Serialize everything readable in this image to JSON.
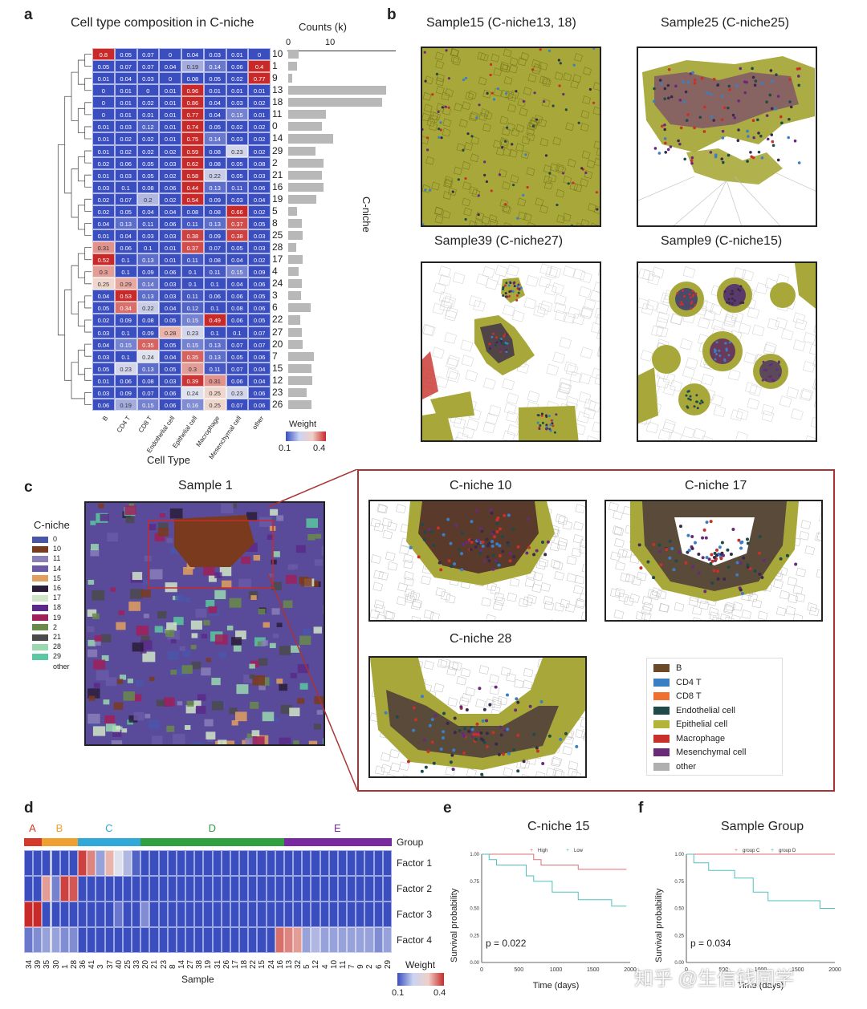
{
  "panels": {
    "a": "a",
    "b": "b",
    "c": "c",
    "d": "d",
    "e": "e",
    "f": "f"
  },
  "a": {
    "title": "Cell type composition in C-niche",
    "counts_title": "Counts (k)",
    "counts_ticks": [
      "0",
      "10"
    ],
    "xlabel": "Cell Type",
    "ylabel_right": "C-niche",
    "columns": [
      "B",
      "CD4 T",
      "CD8 T",
      "Endothelial cell",
      "Epithelial cell",
      "Macrophage",
      "Mesenchymal cell",
      "other"
    ],
    "weight_label": "Weight",
    "weight_ticks": [
      "0.1",
      "0.4"
    ],
    "rows": [
      {
        "niche": "10",
        "vals": [
          "0.8",
          "0.05",
          "0.07",
          "0",
          "0.04",
          "0.03",
          "0.01",
          "0"
        ],
        "count": 2.5
      },
      {
        "niche": "1",
        "vals": [
          "0.05",
          "0.07",
          "0.07",
          "0.04",
          "0.19",
          "0.14",
          "0.06",
          "0.4"
        ],
        "count": 2.2
      },
      {
        "niche": "9",
        "vals": [
          "0.01",
          "0.04",
          "0.03",
          "0",
          "0.08",
          "0.05",
          "0.02",
          "0.77"
        ],
        "count": 1.0
      },
      {
        "niche": "13",
        "vals": [
          "0",
          "0.01",
          "0",
          "0.01",
          "0.96",
          "0.01",
          "0.01",
          "0.01"
        ],
        "count": 23.5
      },
      {
        "niche": "18",
        "vals": [
          "0",
          "0.01",
          "0.02",
          "0.01",
          "0.86",
          "0.04",
          "0.03",
          "0.02"
        ],
        "count": 22.5
      },
      {
        "niche": "11",
        "vals": [
          "0",
          "0.01",
          "0.01",
          "0.01",
          "0.77",
          "0.04",
          "0.15",
          "0.01"
        ],
        "count": 9.0
      },
      {
        "niche": "0",
        "vals": [
          "0.01",
          "0.03",
          "0.12",
          "0.01",
          "0.74",
          "0.05",
          "0.02",
          "0.02"
        ],
        "count": 8.0
      },
      {
        "niche": "14",
        "vals": [
          "0.01",
          "0.02",
          "0.02",
          "0.01",
          "0.75",
          "0.14",
          "0.03",
          "0.02"
        ],
        "count": 10.8
      },
      {
        "niche": "29",
        "vals": [
          "0.01",
          "0.02",
          "0.02",
          "0.02",
          "0.59",
          "0.08",
          "0.23",
          "0.02"
        ],
        "count": 6.5
      },
      {
        "niche": "2",
        "vals": [
          "0.02",
          "0.06",
          "0.05",
          "0.03",
          "0.62",
          "0.08",
          "0.05",
          "0.08"
        ],
        "count": 8.5
      },
      {
        "niche": "21",
        "vals": [
          "0.01",
          "0.03",
          "0.05",
          "0.02",
          "0.58",
          "0.22",
          "0.05",
          "0.03"
        ],
        "count": 8.0
      },
      {
        "niche": "16",
        "vals": [
          "0.03",
          "0.1",
          "0.08",
          "0.06",
          "0.44",
          "0.13",
          "0.11",
          "0.06"
        ],
        "count": 8.5
      },
      {
        "niche": "19",
        "vals": [
          "0.02",
          "0.07",
          "0.2",
          "0.02",
          "0.54",
          "0.09",
          "0.03",
          "0.04"
        ],
        "count": 6.8
      },
      {
        "niche": "5",
        "vals": [
          "0.02",
          "0.05",
          "0.04",
          "0.04",
          "0.08",
          "0.08",
          "0.66",
          "0.02"
        ],
        "count": 2.2
      },
      {
        "niche": "8",
        "vals": [
          "0.04",
          "0.13",
          "0.11",
          "0.06",
          "0.11",
          "0.13",
          "0.37",
          "0.05"
        ],
        "count": 3.2
      },
      {
        "niche": "25",
        "vals": [
          "0.01",
          "0.04",
          "0.03",
          "0.03",
          "0.38",
          "0.09",
          "0.38",
          "0.03"
        ],
        "count": 3.5
      },
      {
        "niche": "28",
        "vals": [
          "0.31",
          "0.06",
          "0.1",
          "0.01",
          "0.37",
          "0.07",
          "0.05",
          "0.03"
        ],
        "count": 2.0
      },
      {
        "niche": "17",
        "vals": [
          "0.52",
          "0.1",
          "0.13",
          "0.01",
          "0.11",
          "0.08",
          "0.04",
          "0.02"
        ],
        "count": 3.5
      },
      {
        "niche": "4",
        "vals": [
          "0.3",
          "0.1",
          "0.09",
          "0.06",
          "0.1",
          "0.11",
          "0.15",
          "0.09"
        ],
        "count": 2.5
      },
      {
        "niche": "24",
        "vals": [
          "0.25",
          "0.29",
          "0.14",
          "0.03",
          "0.1",
          "0.1",
          "0.04",
          "0.06"
        ],
        "count": 3.2
      },
      {
        "niche": "3",
        "vals": [
          "0.04",
          "0.53",
          "0.13",
          "0.03",
          "0.11",
          "0.06",
          "0.06",
          "0.05"
        ],
        "count": 3.0
      },
      {
        "niche": "6",
        "vals": [
          "0.05",
          "0.34",
          "0.22",
          "0.04",
          "0.12",
          "0.1",
          "0.08",
          "0.06"
        ],
        "count": 5.3
      },
      {
        "niche": "22",
        "vals": [
          "0.02",
          "0.09",
          "0.08",
          "0.05",
          "0.15",
          "0.49",
          "0.06",
          "0.05"
        ],
        "count": 2.8
      },
      {
        "niche": "27",
        "vals": [
          "0.03",
          "0.1",
          "0.09",
          "0.28",
          "0.23",
          "0.1",
          "0.1",
          "0.07"
        ],
        "count": 3.3
      },
      {
        "niche": "20",
        "vals": [
          "0.04",
          "0.15",
          "0.35",
          "0.05",
          "0.15",
          "0.13",
          "0.07",
          "0.07"
        ],
        "count": 3.5
      },
      {
        "niche": "7",
        "vals": [
          "0.03",
          "0.1",
          "0.24",
          "0.04",
          "0.35",
          "0.13",
          "0.05",
          "0.06"
        ],
        "count": 6.2
      },
      {
        "niche": "15",
        "vals": [
          "0.05",
          "0.23",
          "0.13",
          "0.05",
          "0.3",
          "0.11",
          "0.07",
          "0.04"
        ],
        "count": 5.5
      },
      {
        "niche": "12",
        "vals": [
          "0.01",
          "0.06",
          "0.08",
          "0.03",
          "0.39",
          "0.31",
          "0.06",
          "0.04"
        ],
        "count": 5.8
      },
      {
        "niche": "23",
        "vals": [
          "0.03",
          "0.09",
          "0.07",
          "0.06",
          "0.24",
          "0.25",
          "0.23",
          "0.06"
        ],
        "count": 4.5
      },
      {
        "niche": "26",
        "vals": [
          "0.06",
          "0.19",
          "0.15",
          "0.06",
          "0.16",
          "0.25",
          "0.07",
          "0.06"
        ],
        "count": 5.5
      }
    ]
  },
  "b": {
    "titles": [
      "Sample15 (C-niche13, 18)",
      "Sample25 (C-niche25)",
      "Sample39 (C-niche27)",
      "Sample9 (C-niche15)"
    ]
  },
  "c": {
    "sample_title": "Sample 1",
    "legend_title": "C-niche",
    "niche_legend": [
      {
        "label": "0",
        "color": "#4b55a8"
      },
      {
        "label": "10",
        "color": "#7a3a1e"
      },
      {
        "label": "11",
        "color": "#8a7fb8"
      },
      {
        "label": "14",
        "color": "#6a5aa8"
      },
      {
        "label": "15",
        "color": "#e0a060"
      },
      {
        "label": "16",
        "color": "#2a1d3a"
      },
      {
        "label": "17",
        "color": "#d0e6c8"
      },
      {
        "label": "18",
        "color": "#5a2a8a"
      },
      {
        "label": "19",
        "color": "#a0205a"
      },
      {
        "label": "2",
        "color": "#6a8a4a"
      },
      {
        "label": "21",
        "color": "#4a4a4a"
      },
      {
        "label": "28",
        "color": "#9ad8b0"
      },
      {
        "label": "29",
        "color": "#5ac8a0"
      }
    ],
    "legend_other": "other",
    "zoom_titles": [
      "C-niche 10",
      "C-niche 17",
      "C-niche 28"
    ],
    "celltype_legend": [
      {
        "label": "B",
        "color": "#6b4a2a"
      },
      {
        "label": "CD4 T",
        "color": "#3a7fc4"
      },
      {
        "label": "CD8 T",
        "color": "#f07030"
      },
      {
        "label": "Endothelial cell",
        "color": "#1e4a4a"
      },
      {
        "label": "Epithelial cell",
        "color": "#b4b43a"
      },
      {
        "label": "Macrophage",
        "color": "#c8302a"
      },
      {
        "label": "Mesenchymal cell",
        "color": "#6a2a7a"
      },
      {
        "label": "other",
        "color": "#b0b0b0"
      }
    ]
  },
  "d": {
    "groups": [
      {
        "label": "A",
        "color": "#d43a2a",
        "text_color": "#d43a2a",
        "n": 2
      },
      {
        "label": "B",
        "color": "#f0a030",
        "text_color": "#f0a030",
        "n": 4
      },
      {
        "label": "C",
        "color": "#30a8d8",
        "text_color": "#30a8d8",
        "n": 7
      },
      {
        "label": "D",
        "color": "#30a040",
        "text_color": "#30a040",
        "n": 16
      },
      {
        "label": "E",
        "color": "#7a2aa0",
        "text_color": "#7a2aa0",
        "n": 12
      }
    ],
    "group_label": "Group",
    "factors": [
      "Factor 1",
      "Factor 2",
      "Factor 3",
      "Factor 4"
    ],
    "samples": [
      "34",
      "39",
      "35",
      "30",
      "1",
      "28",
      "36",
      "41",
      "3",
      "37",
      "40",
      "25",
      "33",
      "20",
      "21",
      "23",
      "8",
      "14",
      "27",
      "38",
      "19",
      "31",
      "26",
      "17",
      "18",
      "22",
      "15",
      "24",
      "16",
      "13",
      "32",
      "5",
      "12",
      "4",
      "10",
      "11",
      "7",
      "9",
      "2",
      "6",
      "29"
    ],
    "matrix": [
      [
        0.1,
        0.1,
        0.1,
        0.1,
        0.1,
        0.1,
        0.38,
        0.32,
        0.18,
        0.28,
        0.24,
        0.2,
        0.12,
        0.1,
        0.1,
        0.1,
        0.1,
        0.1,
        0.1,
        0.1,
        0.1,
        0.1,
        0.1,
        0.1,
        0.1,
        0.1,
        0.1,
        0.1,
        0.1,
        0.1,
        0.1,
        0.1,
        0.1,
        0.1,
        0.1,
        0.1,
        0.1,
        0.1,
        0.1,
        0.1,
        0.1
      ],
      [
        0.1,
        0.1,
        0.3,
        0.15,
        0.38,
        0.36,
        0.1,
        0.1,
        0.1,
        0.1,
        0.1,
        0.1,
        0.1,
        0.1,
        0.1,
        0.1,
        0.1,
        0.1,
        0.1,
        0.1,
        0.1,
        0.1,
        0.1,
        0.1,
        0.1,
        0.1,
        0.1,
        0.1,
        0.1,
        0.1,
        0.1,
        0.1,
        0.1,
        0.1,
        0.1,
        0.1,
        0.1,
        0.1,
        0.1,
        0.1,
        0.1
      ],
      [
        0.4,
        0.4,
        0.1,
        0.1,
        0.1,
        0.1,
        0.1,
        0.1,
        0.1,
        0.1,
        0.14,
        0.1,
        0.1,
        0.16,
        0.1,
        0.1,
        0.1,
        0.1,
        0.1,
        0.1,
        0.1,
        0.1,
        0.1,
        0.1,
        0.1,
        0.1,
        0.1,
        0.1,
        0.1,
        0.1,
        0.1,
        0.1,
        0.1,
        0.1,
        0.1,
        0.1,
        0.1,
        0.1,
        0.1,
        0.1,
        0.1
      ],
      [
        0.14,
        0.16,
        0.18,
        0.18,
        0.16,
        0.16,
        0.1,
        0.1,
        0.1,
        0.1,
        0.1,
        0.1,
        0.1,
        0.1,
        0.1,
        0.1,
        0.1,
        0.1,
        0.1,
        0.1,
        0.1,
        0.1,
        0.1,
        0.1,
        0.1,
        0.1,
        0.1,
        0.1,
        0.34,
        0.32,
        0.3,
        0.18,
        0.2,
        0.18,
        0.18,
        0.18,
        0.18,
        0.18,
        0.18,
        0.16,
        0.18
      ]
    ],
    "xlabel": "Sample",
    "weight_label": "Weight",
    "weight_ticks": [
      "0.1",
      "0.4"
    ]
  },
  "e": {
    "title": "C-niche 15",
    "legend": [
      {
        "label": "High",
        "color": "#e07070"
      },
      {
        "label": "Low",
        "color": "#50c0c0"
      }
    ],
    "ylabel": "Survival probability",
    "xlabel": "Time (days)",
    "xticks": [
      "0",
      "500",
      "1000",
      "1500",
      "2000"
    ],
    "yticks": [
      "0.00",
      "0.25",
      "0.50",
      "0.75",
      "1.00"
    ],
    "pvalue": "p = 0.022",
    "chart_data": {
      "type": "line",
      "title": "C-niche 15",
      "xlabel": "Time (days)",
      "ylabel": "Survival probability",
      "xlim": [
        0,
        2000
      ],
      "ylim": [
        0,
        1
      ],
      "series": [
        {
          "name": "High",
          "x": [
            0,
            500,
            700,
            800,
            1000,
            1300,
            1700,
            1950
          ],
          "y": [
            1.0,
            1.0,
            0.95,
            0.9,
            0.9,
            0.86,
            0.86,
            0.86
          ]
        },
        {
          "name": "Low",
          "x": [
            0,
            100,
            200,
            500,
            600,
            700,
            950,
            1300,
            1700,
            1750,
            1950
          ],
          "y": [
            1.0,
            0.95,
            0.9,
            0.9,
            0.8,
            0.75,
            0.65,
            0.58,
            0.58,
            0.52,
            0.52
          ]
        }
      ]
    }
  },
  "f": {
    "title": "Sample Group",
    "legend": [
      {
        "label": "group C",
        "color": "#e07070"
      },
      {
        "label": "group D",
        "color": "#50c0c0"
      }
    ],
    "ylabel": "Survival probability",
    "xlabel": "Time (days)",
    "xticks": [
      "0",
      "500",
      "1000",
      "1500",
      "2000"
    ],
    "yticks": [
      "0.00",
      "0.25",
      "0.50",
      "0.75",
      "1.00"
    ],
    "pvalue": "p = 0.034",
    "chart_data": {
      "type": "line",
      "title": "Sample Group",
      "xlabel": "Time (days)",
      "ylabel": "Survival probability",
      "xlim": [
        0,
        2000
      ],
      "ylim": [
        0,
        1
      ],
      "series": [
        {
          "name": "group C",
          "x": [
            0,
            2000
          ],
          "y": [
            1.0,
            1.0
          ]
        },
        {
          "name": "group D",
          "x": [
            0,
            100,
            300,
            650,
            900,
            1100,
            1600,
            1800,
            2000
          ],
          "y": [
            1.0,
            0.92,
            0.85,
            0.78,
            0.65,
            0.57,
            0.57,
            0.5,
            0.5
          ]
        }
      ]
    }
  },
  "watermark": "知乎 @生信钱同学"
}
